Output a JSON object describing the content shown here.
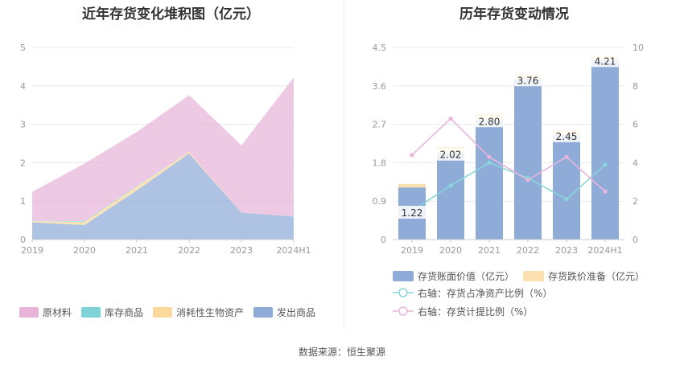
{
  "source": "数据来源：恒生聚源",
  "chart_data": [
    {
      "type": "area",
      "stacked": true,
      "title": "近年存货变化堆积图（亿元）",
      "categories": [
        "2019",
        "2020",
        "2021",
        "2022",
        "2023",
        "2024H1"
      ],
      "ylim": [
        0,
        5
      ],
      "yticks": [
        0,
        1,
        2,
        3,
        4,
        5
      ],
      "grid": true,
      "legend_position": "bottom",
      "series": [
        {
          "name": "原材料",
          "color": "#e8b4d8",
          "values": [
            0.75,
            1.5,
            1.4,
            1.48,
            1.75,
            3.62
          ]
        },
        {
          "name": "库存商品",
          "color": "#7dd3d8",
          "values": [
            0.01,
            0.02,
            0.02,
            0.0,
            0.0,
            0.0
          ]
        },
        {
          "name": "消耗性生物资产",
          "color": "#fbd89b",
          "values": [
            0.03,
            0.08,
            0.1,
            0.04,
            0.0,
            0.0
          ]
        },
        {
          "name": "发出商品",
          "color": "#8facd9",
          "values": [
            0.45,
            0.38,
            1.28,
            2.24,
            0.7,
            0.6
          ]
        }
      ]
    },
    {
      "type": "bar",
      "stacked": true,
      "title": "历年存货变动情况",
      "categories": [
        "2019",
        "2020",
        "2021",
        "2022",
        "2023",
        "2024H1"
      ],
      "ylim": [
        0,
        4.5
      ],
      "yticks": [
        "0",
        "0.9",
        "1.8",
        "2.7",
        "3.6",
        "4.5"
      ],
      "y2lim": [
        0,
        10
      ],
      "y2ticks": [
        0,
        2,
        4,
        6,
        8,
        10
      ],
      "grid": true,
      "legend_position": "bottom",
      "series": [
        {
          "name": "存货账面价值（亿元）",
          "color": "#8facd9",
          "values": [
            1.22,
            2.02,
            2.8,
            3.76,
            2.45,
            4.21
          ],
          "labels": [
            "1.22",
            "2.02",
            "2.80",
            "3.76",
            "2.45",
            "4.21"
          ]
        },
        {
          "name": "存货跌价准备（亿元）",
          "color": "#fde0b0",
          "values": [
            0.08,
            0.14,
            0.14,
            0.12,
            0.12,
            0.1
          ]
        }
      ],
      "lines": [
        {
          "name": "右轴：存货占净资产比例（%）",
          "color": "#88d6d8",
          "axis": "right",
          "values": [
            1.5,
            2.8,
            4.0,
            3.2,
            2.1,
            3.9
          ]
        },
        {
          "name": "右轴：存货计提比例（%）",
          "color": "#e9b4dc",
          "axis": "right",
          "values": [
            4.4,
            6.3,
            4.3,
            3.1,
            4.3,
            2.5
          ]
        }
      ]
    }
  ]
}
